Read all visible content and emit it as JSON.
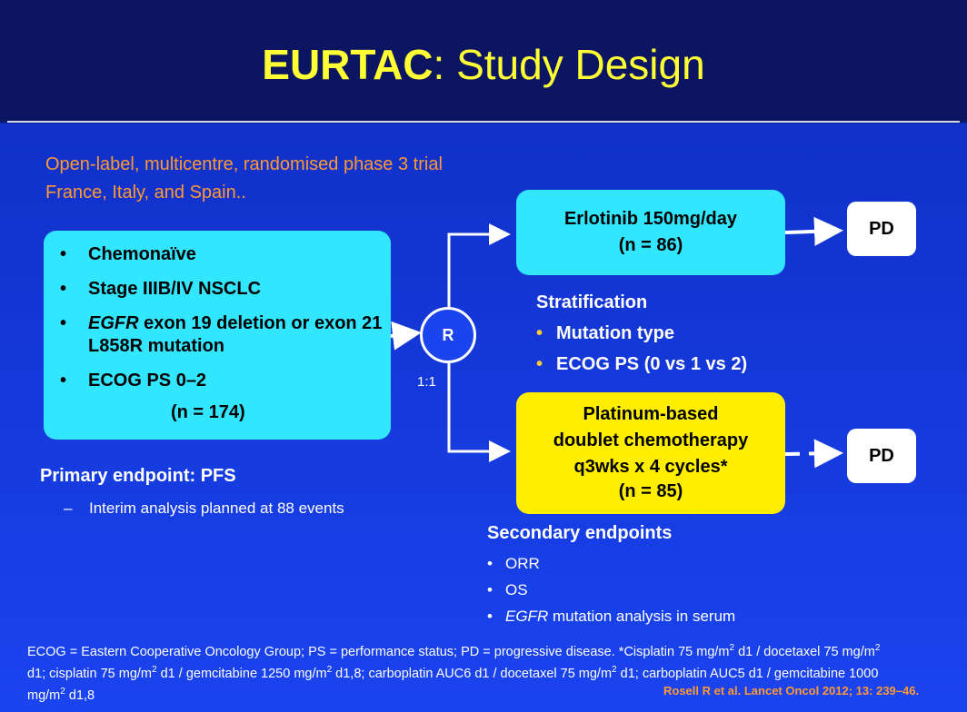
{
  "title": {
    "bold": "EURTAC",
    "rest": ": Study Design"
  },
  "design_lines": [
    "Open-label, multicentre, randomised phase 3 trial",
    "France, Italy, and Spain.."
  ],
  "eligibility": {
    "items": [
      "Chemonaïve",
      "Stage IIIB/IV NSCLC",
      "exon 19 deletion or exon 21 L858R mutation",
      "ECOG PS 0–2"
    ],
    "egfr_italic": "EGFR",
    "n": "(n = 174)"
  },
  "randomization": {
    "label": "R",
    "ratio": "1:1"
  },
  "arms": {
    "erlotinib": {
      "line1": "Erlotinib 150mg/day",
      "n": "(n = 86)"
    },
    "chemo": {
      "lines": [
        "Platinum-based",
        "doublet chemotherapy",
        "q3wks x 4 cycles*"
      ],
      "n": "(n = 85)"
    }
  },
  "outcome": {
    "pd1": "PD",
    "pd2": "PD"
  },
  "stratification": {
    "heading": "Stratification",
    "items": [
      "Mutation type",
      "ECOG PS (0 vs 1 vs 2)"
    ]
  },
  "primary": {
    "heading": "Primary endpoint: PFS",
    "dash": "–",
    "sub": "Interim analysis planned at 88 events"
  },
  "secondary": {
    "heading": "Secondary endpoints",
    "items": [
      "ORR",
      "OS"
    ],
    "egfr_item": {
      "italic": "EGFR",
      "rest": " mutation analysis in serum"
    }
  },
  "footnote": {
    "p1": "ECOG = Eastern Cooperative Oncology Group; PS = performance status; PD = progressive disease. *Cisplatin 75 mg/m",
    "p2": " d1 / docetaxel 75 mg/m",
    "p3": " d1; cisplatin 75 mg/m",
    "p4": " d1 / gemcitabine 1250 mg/m",
    "p5": " d1,8; carboplatin AUC6 d1 / docetaxel 75 mg/m",
    "p6": " d1; carboplatin AUC5 d1 / gemcitabine 1000 mg/m",
    "p7": " d1,8",
    "sup": "2"
  },
  "citation": "Rosell R et al. Lancet Oncol 2012; 13: 239–46.",
  "colors": {
    "title": "#ffff33",
    "orange": "#ff9933",
    "cyan_box": "#33e6ff",
    "yellow_box": "#ffee00",
    "background": "#1a44f0"
  }
}
